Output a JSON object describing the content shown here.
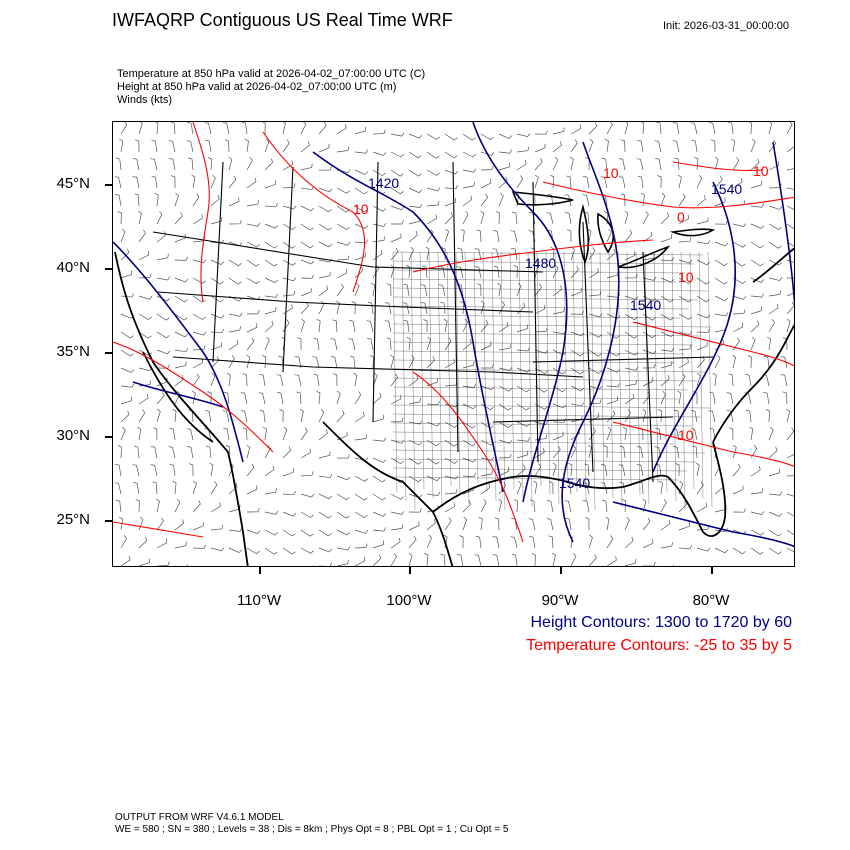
{
  "header": {
    "title": "IWFAQRP Contiguous US Real Time WRF",
    "init": "Init: 2026-03-31_00:00:00"
  },
  "fields": [
    "Temperature at 850 hPa valid at 2026-04-02_07:00:00 UTC   (C)",
    "Height at 850 hPa valid at 2026-04-02_07:00:00 UTC   (m)",
    "Winds   (kts)"
  ],
  "axes": {
    "lat_labels": [
      "45°N",
      "40°N",
      "35°N",
      "30°N",
      "25°N"
    ],
    "lon_labels": [
      "110°W",
      "100°W",
      "90°W",
      "80°W"
    ]
  },
  "contour_labels": {
    "height": [
      "1420",
      "1540",
      "1480",
      "1540",
      "1540"
    ],
    "temperature": [
      "10",
      "10",
      "0",
      "10",
      "10",
      "10"
    ]
  },
  "legend": {
    "height": "Height Contours: 1300 to 1720 by 60",
    "temperature": "Temperature Contours: -25 to 35 by 5",
    "height_color": "#000080",
    "temperature_color": "#ff0000"
  },
  "footer": {
    "line1": "OUTPUT FROM WRF V4.6.1 MODEL",
    "line2": "WE = 580 ; SN = 380 ; Levels = 38 ; Dis = 8km ; Phys Opt = 8 ; PBL Opt = 1 ; Cu Opt = 5"
  }
}
